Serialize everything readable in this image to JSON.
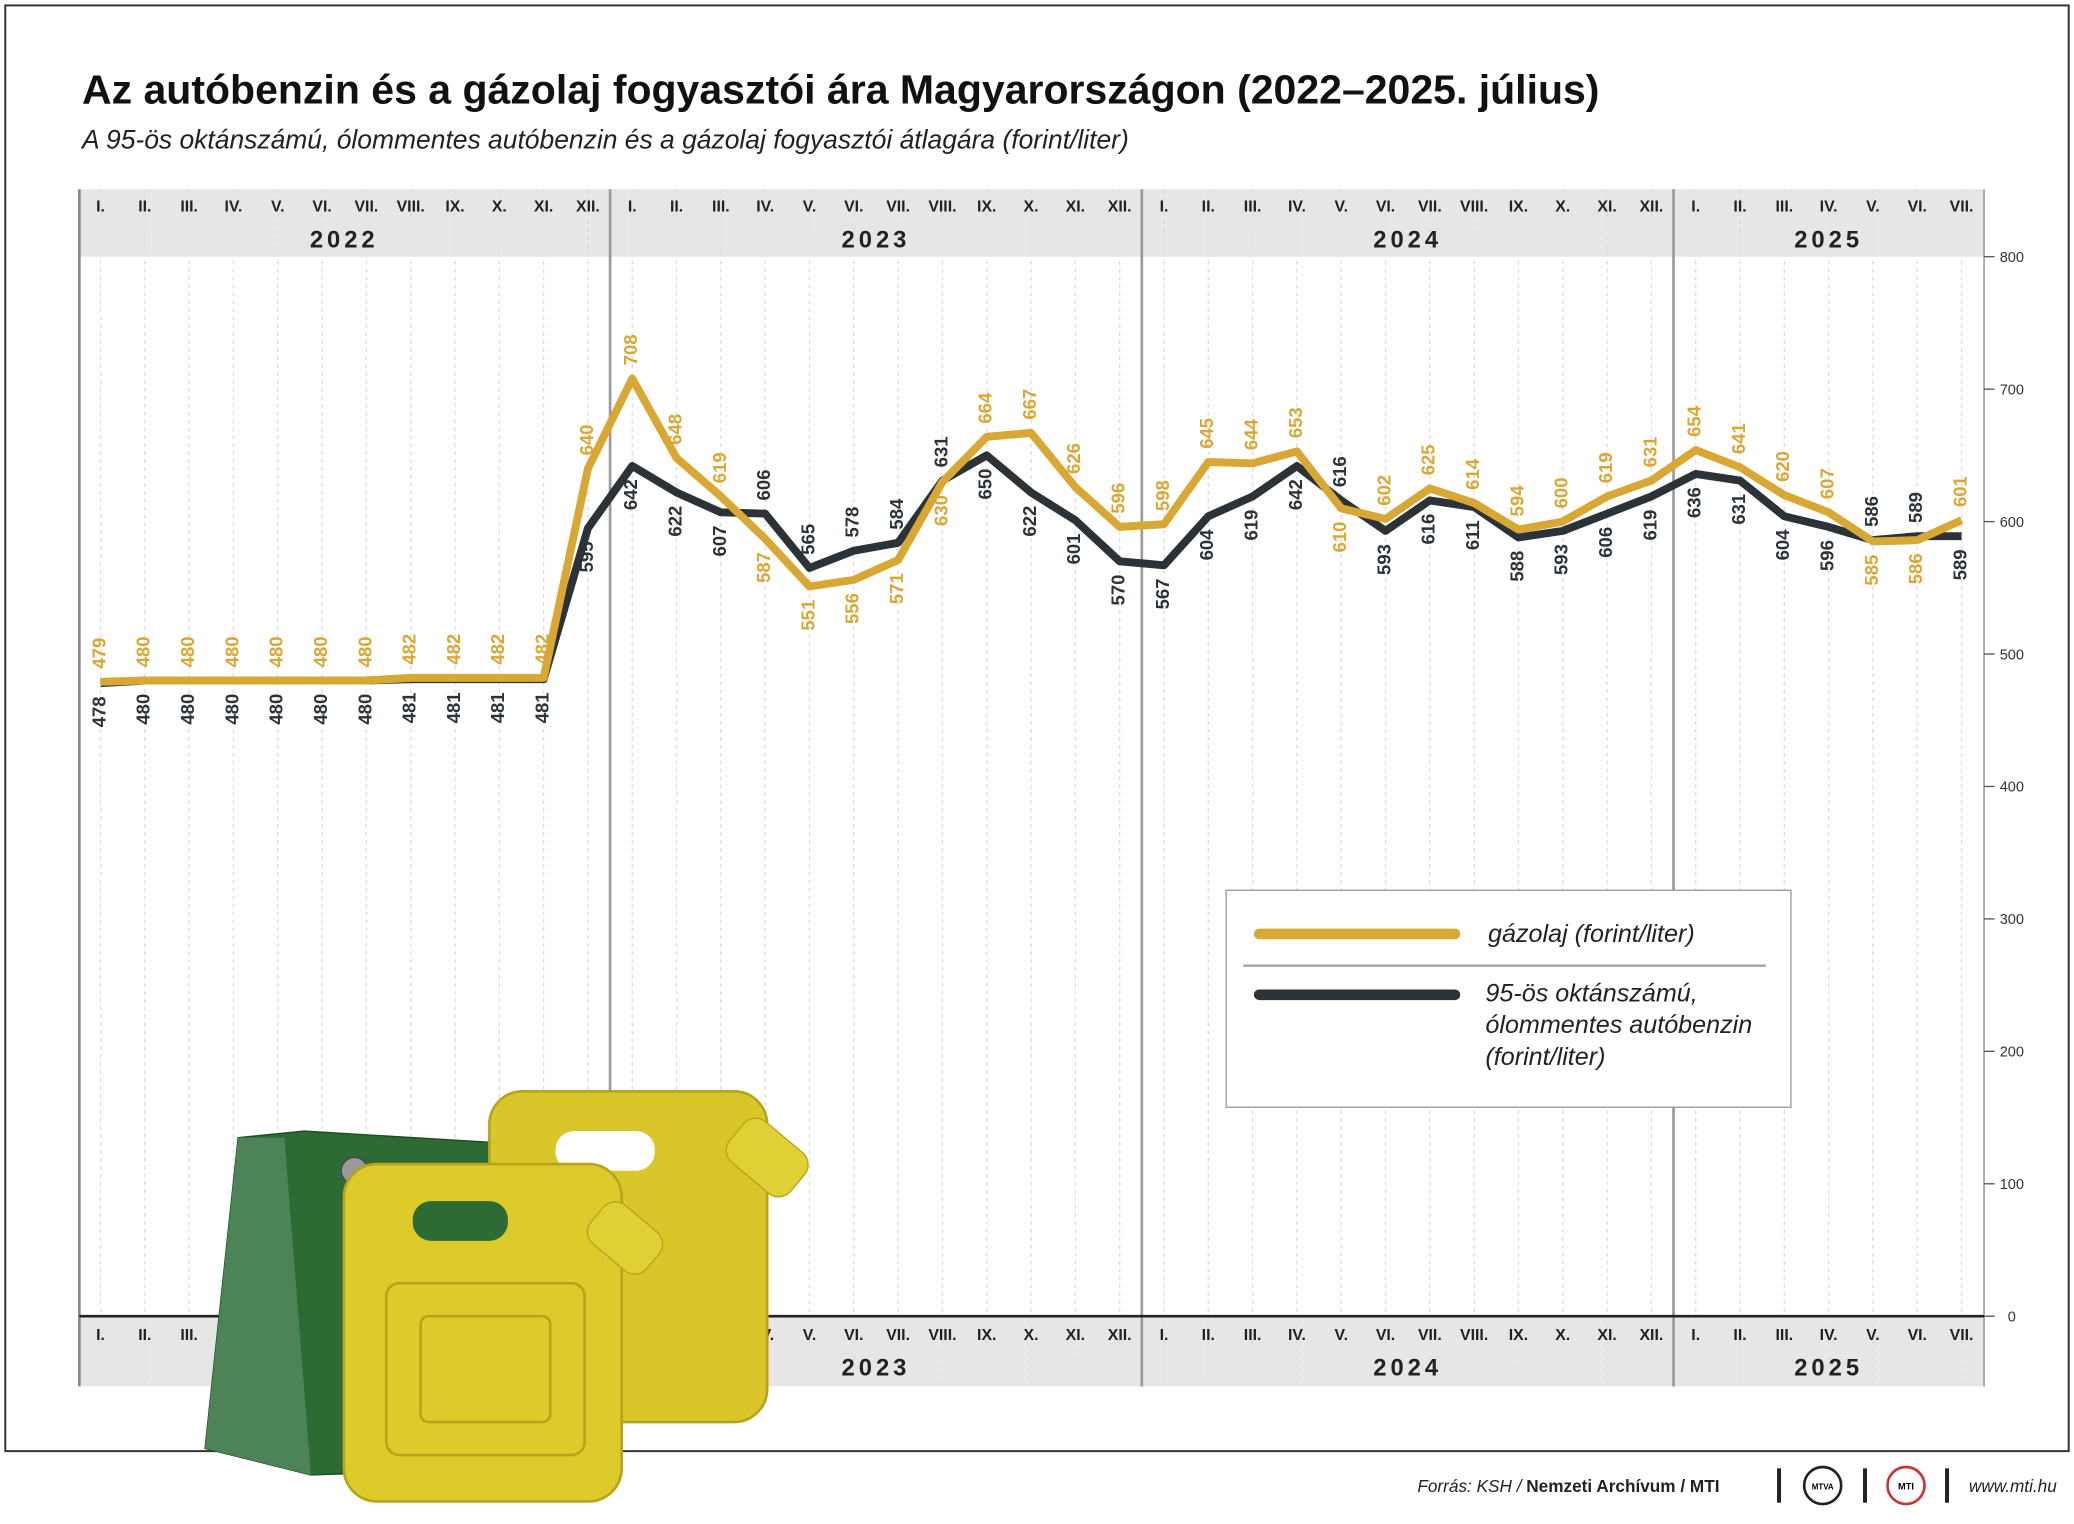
{
  "chart_data": {
    "type": "line",
    "title": "Az autóbenzin és a gázolaj fogyasztói ára Magyarországon (2022–2025. július)",
    "subtitle": "A 95-ös oktánszámú, ólommentes autóbenzin és a gázolaj fogyasztói átlagára (forint/liter)",
    "categories": [
      "I.",
      "II.",
      "III.",
      "IV.",
      "V.",
      "VI.",
      "VII.",
      "VIII.",
      "IX.",
      "X.",
      "XI.",
      "XII.",
      "I.",
      "II.",
      "III.",
      "IV.",
      "V.",
      "VI.",
      "VII.",
      "VIII.",
      "IX.",
      "X.",
      "XI.",
      "XII.",
      "I.",
      "II.",
      "III.",
      "IV.",
      "V.",
      "VI.",
      "VII.",
      "VIII.",
      "IX.",
      "X.",
      "XI.",
      "XII.",
      "I.",
      "II.",
      "III.",
      "IV.",
      "V.",
      "VI.",
      "VII."
    ],
    "years": [
      "2022",
      "2023",
      "2024",
      "2025"
    ],
    "series": [
      {
        "name": "gázolaj (forint/liter)",
        "color": "#d9a733",
        "values": [
          479,
          480,
          480,
          480,
          480,
          480,
          480,
          482,
          482,
          482,
          482,
          640,
          708,
          648,
          619,
          587,
          551,
          556,
          571,
          630,
          664,
          667,
          626,
          596,
          598,
          645,
          644,
          653,
          610,
          602,
          625,
          614,
          594,
          600,
          619,
          631,
          654,
          641,
          620,
          607,
          585,
          586,
          601
        ]
      },
      {
        "name": "95-ös oktánszámú, ólommentes autóbenzin (forint/liter)",
        "color": "#2b3238",
        "values": [
          478,
          480,
          480,
          480,
          480,
          480,
          480,
          481,
          481,
          481,
          481,
          595,
          642,
          622,
          607,
          606,
          565,
          578,
          584,
          631,
          650,
          622,
          601,
          570,
          567,
          604,
          619,
          642,
          616,
          593,
          616,
          611,
          588,
          593,
          606,
          619,
          636,
          631,
          604,
          596,
          586,
          589,
          589
        ]
      }
    ],
    "ylim": [
      0,
      800
    ],
    "yticks": [
      0,
      100,
      200,
      300,
      400,
      500,
      600,
      700,
      800
    ]
  },
  "footer": {
    "source_prefix": "Forrás: KSH /",
    "source_bold": "Nemzeti Archívum / MTI",
    "logo1": "MTVA",
    "logo2": "MTI",
    "url": "www.mti.hu"
  }
}
